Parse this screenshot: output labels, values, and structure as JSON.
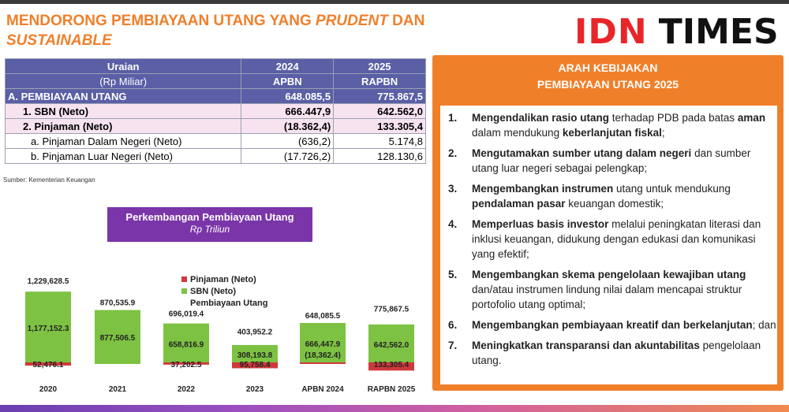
{
  "title": {
    "part1": "MENDORONG PEMBIAYAAN UTANG YANG ",
    "italic": "PRUDENT",
    "part2": " DAN",
    "line2": "SUSTAINABLE"
  },
  "logo": {
    "idn": "IDN",
    "times": "TIMES"
  },
  "table": {
    "header": {
      "uraian": "Uraian",
      "unit": "(Rp Miliar)",
      "y1": "2024",
      "y2": "2025",
      "s1": "APBN",
      "s2": "RAPBN"
    },
    "rows": [
      {
        "label": "A. PEMBIAYAAN UTANG",
        "v1": "648.085,5",
        "v2": "775.867,5"
      },
      {
        "label": "1. SBN (Neto)",
        "v1": "666.447,9",
        "v2": "642.562,0"
      },
      {
        "label": "2. Pinjaman (Neto)",
        "v1": "(18.362,4)",
        "v2": "133.305,4"
      },
      {
        "label": "a. Pinjaman Dalam Negeri (Neto)",
        "v1": "(636,2)",
        "v2": "5.174,8"
      },
      {
        "label": "b. Pinjaman Luar Negeri (Neto)",
        "v1": "(17.726,2)",
        "v2": "128.130,6"
      }
    ]
  },
  "source": "Sumber: Kementerian Keuangan",
  "chart_title": {
    "line1": "Perkembangan Pembiayaan Utang",
    "line2": "Rp Triliun"
  },
  "chart_data": {
    "type": "bar",
    "categories": [
      "2020",
      "2021",
      "2022",
      "2023",
      "APBN 2024",
      "RAPBN 2025"
    ],
    "series": [
      {
        "name": "Pinjaman (Neto)",
        "color": "#d0393c",
        "values": [
          52.4761,
          null,
          37.2025,
          95.7584,
          -18.3624,
          133.3054
        ],
        "labels": [
          "52,476.1",
          "",
          "37,202.5",
          "95,758.4",
          "(18,362.4)",
          "133,305.4"
        ]
      },
      {
        "name": "SBN (Neto)",
        "color": "#7dc242",
        "values": [
          1177.1523,
          877.5065,
          658.8169,
          308.1938,
          666.4479,
          642.562
        ],
        "labels": [
          "1,177,152.3",
          "877,506.5",
          "658,816.9",
          "308,193.8",
          "666,447.9",
          "642,562.0"
        ]
      },
      {
        "name": "Pembiayaan Utang",
        "values": [
          1229.6285,
          870.5359,
          696.0194,
          403.9522,
          648.0855,
          775.8675
        ],
        "labels": [
          "1,229,628.5",
          "870,535.9",
          "696,019.4",
          "403,952.2",
          "648,085.5",
          "775,867.5"
        ]
      }
    ]
  },
  "panel": {
    "title1": "ARAH KEBIJAKAN",
    "title2": "PEMBIAYAAN UTANG 2025",
    "items": [
      {
        "num": "1.",
        "parts": [
          [
            "b",
            "Mengendalikan rasio utang"
          ],
          [
            "n",
            " terhadap PDB pada batas "
          ],
          [
            "b",
            "aman"
          ],
          [
            "n",
            " dalam mendukung "
          ],
          [
            "b",
            "keberlanjutan fiskal"
          ],
          [
            "n",
            ";"
          ]
        ]
      },
      {
        "num": "2.",
        "parts": [
          [
            "b",
            "Mengutamakan sumber utang dalam negeri"
          ],
          [
            "n",
            " dan sumber utang luar negeri sebagai pelengkap;"
          ]
        ]
      },
      {
        "num": "3.",
        "parts": [
          [
            "b",
            "Mengembangkan instrumen"
          ],
          [
            "n",
            " utang untuk mendukung "
          ],
          [
            "b",
            "pendalaman pasar"
          ],
          [
            "n",
            " keuangan domestik;"
          ]
        ]
      },
      {
        "num": "4.",
        "parts": [
          [
            "b",
            "Memperluas basis investor"
          ],
          [
            "n",
            " melalui peningkatan literasi dan inklusi keuangan, didukung dengan edukasi dan komunikasi yang efektif;"
          ]
        ]
      },
      {
        "num": "5.",
        "parts": [
          [
            "b",
            "Mengembangkan skema pengelolaan kewajiban utang"
          ],
          [
            "n",
            " dan/atau instrumen lindung nilai dalam mencapai struktur portofolio utang optimal;"
          ]
        ]
      },
      {
        "num": "6.",
        "parts": [
          [
            "b",
            "Mengembangkan pembiayaan kreatif dan berkelanjutan"
          ],
          [
            "n",
            "; dan"
          ]
        ]
      },
      {
        "num": "7.",
        "parts": [
          [
            "b",
            "Meningkatkan transparansi dan akuntabilitas"
          ],
          [
            "n",
            " pengelolaan utang."
          ]
        ]
      }
    ]
  }
}
